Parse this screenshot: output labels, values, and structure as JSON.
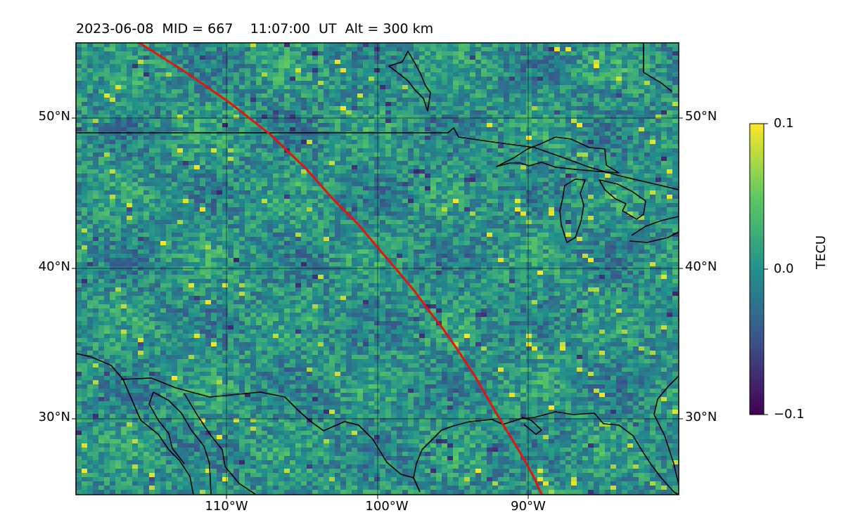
{
  "title": {
    "date": "2023-06-08",
    "mid": "MID = 667",
    "time": "11:07:00  UT",
    "alt": "Alt = 300 km"
  },
  "map": {
    "lon_range": [
      -120,
      -80
    ],
    "lat_range": [
      25,
      55
    ],
    "lat_labels_left": [
      "50°N",
      "40°N",
      "30°N"
    ],
    "lat_labels_right": [
      "50°N",
      "40°N",
      "30°N"
    ],
    "lon_labels": [
      "110°W",
      "100°W",
      "90°W"
    ],
    "gridlines": true,
    "track_color": "#e3160d",
    "coastline_color": "#000000"
  },
  "colorbar": {
    "label": "TECU",
    "max": "0.1",
    "mid": "0.0",
    "min": "−0.1",
    "colormap": "viridis"
  }
}
